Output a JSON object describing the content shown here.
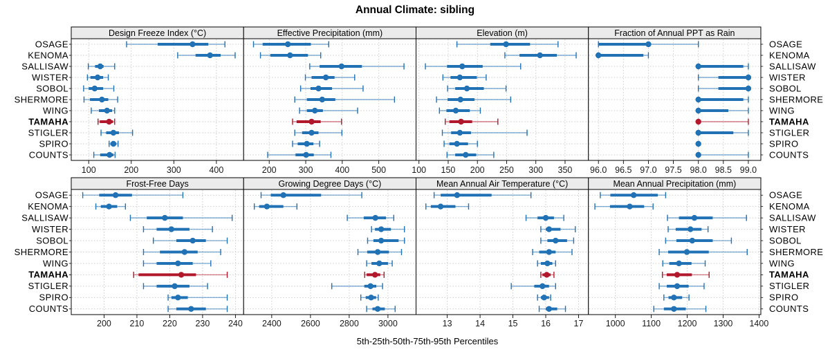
{
  "title": "Annual Climate: sibling",
  "caption": "5th-25th-50th-75th-95th Percentiles",
  "highlight_station": "TAMAHA",
  "stations": [
    "OSAGE",
    "KENOMA",
    "SALLISAW",
    "WISTER",
    "SOBOL",
    "SHERMORE",
    "WING",
    "TAMAHA",
    "STIGLER",
    "SPIRO",
    "COUNTS"
  ],
  "percentile_labels": [
    "5th",
    "25th",
    "50th",
    "75th",
    "95th"
  ],
  "colors": {
    "series": "#2171B5",
    "highlight": "#B2182B",
    "strip_bg": "#EBEBEB",
    "grid": "#CCCCCC",
    "border": "#000000",
    "tick_text": "#1A1A1A"
  },
  "chart_data": [
    {
      "type": "dotplot",
      "key": "design-freeze-index",
      "title": "Design Freeze Index (°C)",
      "ticks": [
        100,
        200,
        300,
        400
      ],
      "tick_labels": [
        "100",
        "200",
        "300",
        "400"
      ],
      "xlim": [
        59,
        464
      ],
      "values": [
        [
          189,
          262,
          344,
          381,
          420
        ],
        [
          309,
          351,
          385,
          410,
          444
        ],
        [
          99,
          115,
          127,
          135,
          161
        ],
        [
          97,
          104,
          121,
          134,
          146
        ],
        [
          88,
          100,
          114,
          134,
          159
        ],
        [
          89,
          103,
          131,
          146,
          168
        ],
        [
          106,
          124,
          143,
          155,
          161
        ],
        [
          122,
          126,
          148,
          157,
          161
        ],
        [
          129,
          141,
          158,
          171,
          203
        ],
        [
          148,
          151,
          158,
          165,
          169
        ],
        [
          112,
          127,
          149,
          158,
          162
        ]
      ]
    },
    {
      "type": "dotplot",
      "key": "effective-precipitation",
      "title": "Effective Precipitation (mm)",
      "ticks": [
        200,
        300,
        400,
        500
      ],
      "tick_labels": [
        "200",
        "300",
        "400",
        "500"
      ],
      "xlim": [
        130,
        602
      ],
      "values": [
        [
          157,
          182,
          251,
          314,
          363
        ],
        [
          176,
          203,
          257,
          306,
          341
        ],
        [
          311,
          338,
          398,
          454,
          569
        ],
        [
          299,
          316,
          355,
          379,
          434
        ],
        [
          286,
          313,
          335,
          372,
          457
        ],
        [
          270,
          303,
          345,
          381,
          543
        ],
        [
          283,
          303,
          325,
          347,
          442
        ],
        [
          264,
          275,
          316,
          341,
          398
        ],
        [
          270,
          290,
          316,
          335,
          399
        ],
        [
          264,
          278,
          303,
          321,
          338
        ],
        [
          196,
          272,
          301,
          322,
          369
        ]
      ]
    },
    {
      "type": "dotplot",
      "key": "elevation",
      "title": "Elevation (m)",
      "ticks": [
        100,
        150,
        200,
        250,
        300,
        350
      ],
      "tick_labels": [
        "100",
        "150",
        "200",
        "250",
        "300",
        "350"
      ],
      "xlim": [
        95,
        390
      ],
      "values": [
        [
          165,
          222,
          249,
          290,
          338
        ],
        [
          247,
          272,
          307,
          336,
          369
        ],
        [
          111,
          148,
          174,
          209,
          274
        ],
        [
          141,
          154,
          170,
          199,
          215
        ],
        [
          149,
          162,
          182,
          211,
          249
        ],
        [
          130,
          149,
          171,
          195,
          257
        ],
        [
          135,
          147,
          163,
          187,
          205
        ],
        [
          145,
          152,
          172,
          191,
          235
        ],
        [
          140,
          155,
          170,
          189,
          285
        ],
        [
          143,
          152,
          165,
          184,
          200
        ],
        [
          148,
          162,
          180,
          198,
          228
        ]
      ]
    },
    {
      "type": "dotplot",
      "key": "fraction-ppt-rain",
      "title": "Fraction of Annual PPT as Rain",
      "ticks": [
        96,
        96.5,
        97,
        97.5,
        98,
        98.5,
        99
      ],
      "tick_labels": [
        "96.0",
        "96.5",
        "97.0",
        "97.5",
        "98.0",
        "98.5",
        "99.0"
      ],
      "xlim": [
        95.8,
        99.25
      ],
      "values": [
        [
          96,
          96,
          97,
          97,
          98
        ],
        [
          96,
          96,
          96,
          96.9,
          97
        ],
        [
          98,
          98,
          98,
          98.9,
          99
        ],
        [
          98,
          98.4,
          99,
          99,
          99
        ],
        [
          98,
          98.4,
          99,
          99,
          99
        ],
        [
          98,
          98,
          98,
          98.9,
          99
        ],
        [
          98,
          98,
          98,
          98.6,
          99
        ],
        [
          98,
          98,
          98,
          98,
          99
        ],
        [
          98,
          98,
          98,
          98.7,
          99
        ],
        [
          98,
          98,
          98,
          98,
          98
        ],
        [
          98,
          98,
          98,
          98,
          99
        ]
      ]
    },
    {
      "type": "dotplot",
      "key": "frost-free-days",
      "title": "Frost-Free Days",
      "ticks": [
        200,
        210,
        220,
        230,
        240
      ],
      "tick_labels": [
        "200",
        "210",
        "220",
        "230",
        "240"
      ],
      "xlim": [
        190,
        242.5
      ],
      "values": [
        [
          193.5,
          198.5,
          203.5,
          208.5,
          224
        ],
        [
          197.5,
          199,
          201.5,
          204,
          206.5
        ],
        [
          208,
          213,
          218.5,
          224,
          239
        ],
        [
          212,
          216,
          220.5,
          226,
          233
        ],
        [
          215,
          222,
          227,
          231,
          237.5
        ],
        [
          212,
          217,
          224.5,
          228.5,
          235.5
        ],
        [
          212,
          216,
          222.5,
          227,
          232.5
        ],
        [
          209,
          210.5,
          223.5,
          228,
          237.5
        ],
        [
          212,
          216,
          221.5,
          226,
          231.5
        ],
        [
          219.5,
          220.5,
          222.5,
          225.5,
          237.5
        ],
        [
          219.5,
          222,
          226.5,
          231,
          237.5
        ]
      ]
    },
    {
      "type": "dotplot",
      "key": "growing-degree-days",
      "title": "Growing Degree Days (°C)",
      "ticks": [
        2400,
        2600,
        2800,
        3000
      ],
      "tick_labels": [
        "2400",
        "2600",
        "2800",
        "3000"
      ],
      "xlim": [
        2255,
        3145
      ],
      "values": [
        [
          2345,
          2395,
          2460,
          2655,
          2865
        ],
        [
          2310,
          2335,
          2375,
          2460,
          2530
        ],
        [
          2790,
          2875,
          2935,
          2990,
          3030
        ],
        [
          2915,
          2933,
          2965,
          3015,
          3085
        ],
        [
          2895,
          2925,
          2965,
          3055,
          3085
        ],
        [
          2845,
          2893,
          2947,
          3005,
          3070
        ],
        [
          2890,
          2915,
          2955,
          3000,
          3022
        ],
        [
          2880,
          2890,
          2933,
          2960,
          2980
        ],
        [
          2710,
          2878,
          2910,
          2940,
          2972
        ],
        [
          2860,
          2885,
          2913,
          2939,
          2950
        ],
        [
          2890,
          2920,
          2947,
          2984,
          3037
        ]
      ]
    },
    {
      "type": "dotplot",
      "key": "mean-annual-air-temperature",
      "title": "Mean Annual Air Temperature (°C)",
      "ticks": [
        13,
        14,
        15,
        16,
        17
      ],
      "tick_labels": [
        "13",
        "14",
        "15",
        "16",
        "17"
      ],
      "xlim": [
        12.05,
        17.3
      ],
      "values": [
        [
          12.6,
          12.8,
          13.3,
          14.35,
          15.55
        ],
        [
          12.35,
          12.5,
          12.8,
          13.25,
          13.65
        ],
        [
          15.4,
          15.75,
          16.0,
          16.25,
          16.55
        ],
        [
          15.85,
          16.0,
          16.1,
          16.45,
          16.9
        ],
        [
          15.85,
          16.05,
          16.3,
          16.65,
          16.85
        ],
        [
          15.6,
          15.8,
          16.1,
          16.3,
          16.8
        ],
        [
          15.75,
          15.85,
          16.05,
          16.2,
          16.3
        ],
        [
          15.85,
          15.9,
          16.03,
          16.15,
          16.25
        ],
        [
          14.95,
          15.65,
          15.9,
          16.1,
          16.3
        ],
        [
          15.75,
          15.85,
          15.95,
          16.1,
          16.15
        ],
        [
          15.8,
          16.0,
          16.1,
          16.35,
          16.6
        ]
      ]
    },
    {
      "type": "dotplot",
      "key": "mean-annual-precipitation",
      "title": "Mean Annual Precipitation (mm)",
      "ticks": [
        1000,
        1100,
        1200,
        1300,
        1400
      ],
      "tick_labels": [
        "1000",
        "1100",
        "1200",
        "1300",
        "1400"
      ],
      "xlim": [
        925,
        1405
      ],
      "values": [
        [
          958,
          986,
          1051,
          1118,
          1140
        ],
        [
          943,
          985,
          1040,
          1080,
          1105
        ],
        [
          1145,
          1177,
          1220,
          1271,
          1365
        ],
        [
          1147,
          1168,
          1209,
          1240,
          1258
        ],
        [
          1140,
          1170,
          1214,
          1271,
          1323
        ],
        [
          1122,
          1147,
          1199,
          1260,
          1367
        ],
        [
          1132,
          1150,
          1177,
          1212,
          1250
        ],
        [
          1131,
          1143,
          1172,
          1213,
          1261
        ],
        [
          1122,
          1143,
          1172,
          1204,
          1247
        ],
        [
          1135,
          1148,
          1163,
          1186,
          1205
        ],
        [
          1107,
          1135,
          1163,
          1196,
          1252
        ]
      ]
    }
  ]
}
